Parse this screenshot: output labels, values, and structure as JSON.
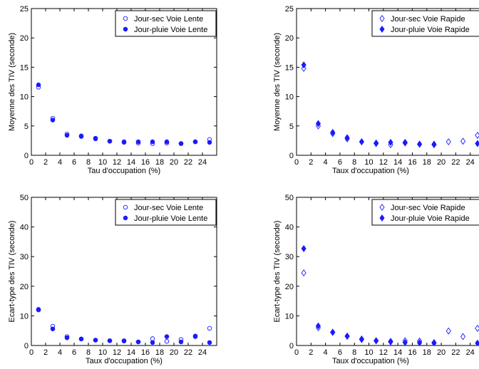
{
  "colors": {
    "marker": "#1a1aff",
    "axis": "#000000"
  },
  "chart_data": [
    {
      "type": "scatter",
      "ylabel": "Moyenne des TIV (seconde)",
      "xlabel": "Tau d'occupation (%)",
      "xlim": [
        0,
        26
      ],
      "ylim": [
        0,
        25
      ],
      "xticks": [
        0,
        2,
        4,
        6,
        8,
        10,
        12,
        14,
        16,
        18,
        20,
        22,
        24
      ],
      "yticks": [
        0,
        5,
        10,
        15,
        20,
        25
      ],
      "grid": false,
      "legend_position": "top-right",
      "series": [
        {
          "name": "Jour-sec Voie Lente",
          "marker": "circle-open",
          "x": [
            1,
            3,
            5,
            7,
            9,
            11,
            13,
            15,
            17,
            19,
            21,
            23,
            25
          ],
          "y": [
            11.6,
            6.3,
            3.6,
            3.2,
            2.8,
            2.4,
            2.2,
            2.1,
            2.0,
            2.1,
            2.0,
            2.3,
            2.7
          ]
        },
        {
          "name": "Jour-pluie Voie Lente",
          "marker": "circle-filled",
          "x": [
            1,
            3,
            5,
            7,
            9,
            11,
            13,
            15,
            17,
            19,
            21,
            23,
            25
          ],
          "y": [
            12.0,
            6.0,
            3.4,
            3.3,
            2.9,
            2.4,
            2.3,
            2.3,
            2.3,
            2.3,
            2.0,
            2.3,
            2.2
          ]
        }
      ]
    },
    {
      "type": "scatter",
      "ylabel": "Moyenne des TIV (seconde)",
      "xlabel": "Taux d'occupation (%)",
      "xlim": [
        0,
        26
      ],
      "ylim": [
        0,
        25
      ],
      "xticks": [
        0,
        2,
        4,
        6,
        8,
        10,
        12,
        14,
        16,
        18,
        20,
        22,
        24
      ],
      "yticks": [
        0,
        5,
        10,
        15,
        20,
        25
      ],
      "grid": false,
      "legend_position": "top-right",
      "series": [
        {
          "name": "Jour-sec Voie Rapide",
          "marker": "diamond-open",
          "x": [
            1,
            3,
            5,
            7,
            9,
            11,
            13,
            15,
            17,
            19,
            21,
            23,
            25
          ],
          "y": [
            14.8,
            5.0,
            3.7,
            2.8,
            2.3,
            2.0,
            1.8,
            2.1,
            1.9,
            1.9,
            2.3,
            2.4,
            3.4
          ]
        },
        {
          "name": "Jour-pluie Voie Rapide",
          "marker": "diamond-filled",
          "x": [
            1,
            3,
            5,
            7,
            9,
            11,
            13,
            15,
            17,
            19,
            25
          ],
          "y": [
            15.4,
            5.4,
            3.9,
            3.0,
            2.3,
            2.1,
            2.2,
            2.2,
            1.9,
            1.8,
            2.0
          ]
        }
      ]
    },
    {
      "type": "scatter",
      "ylabel": "Ecart-type des TIV (seconde)",
      "xlabel": "Taux d'occupation (%)",
      "xlim": [
        0,
        26
      ],
      "ylim": [
        0,
        50
      ],
      "xticks": [
        0,
        2,
        4,
        6,
        8,
        10,
        12,
        14,
        16,
        18,
        20,
        22,
        24
      ],
      "yticks": [
        0,
        10,
        20,
        30,
        40,
        50
      ],
      "grid": false,
      "legend_position": "top-right",
      "series": [
        {
          "name": "Jour-sec Voie Lente",
          "marker": "circle-open",
          "x": [
            1,
            3,
            5,
            7,
            9,
            11,
            13,
            15,
            17,
            19,
            21,
            23,
            25
          ],
          "y": [
            12.0,
            6.5,
            3.0,
            2.2,
            1.8,
            1.6,
            1.5,
            1.2,
            2.3,
            1.4,
            2.0,
            3.0,
            5.8
          ]
        },
        {
          "name": "Jour-pluie Voie Lente",
          "marker": "circle-filled",
          "x": [
            1,
            3,
            5,
            7,
            9,
            11,
            13,
            15,
            17,
            19,
            21,
            23,
            25
          ],
          "y": [
            12.2,
            5.6,
            2.6,
            2.2,
            1.8,
            1.6,
            1.6,
            1.2,
            1.0,
            3.0,
            1.2,
            3.2,
            1.0
          ]
        }
      ]
    },
    {
      "type": "scatter",
      "ylabel": "Ecart-type des TIV (seconde)",
      "xlabel": "Taux d'occupation (%)",
      "xlim": [
        0,
        26
      ],
      "ylim": [
        0,
        50
      ],
      "xticks": [
        0,
        2,
        4,
        6,
        8,
        10,
        12,
        14,
        16,
        18,
        20,
        22,
        24
      ],
      "yticks": [
        0,
        10,
        20,
        30,
        40,
        50
      ],
      "grid": false,
      "legend_position": "top-right",
      "series": [
        {
          "name": "Jour-sec Voie Rapide",
          "marker": "diamond-open",
          "x": [
            1,
            3,
            5,
            7,
            9,
            11,
            13,
            15,
            17,
            19,
            21,
            23,
            25
          ],
          "y": [
            24.5,
            6.0,
            4.4,
            3.2,
            2.0,
            1.6,
            1.2,
            1.6,
            1.5,
            1.0,
            4.9,
            3.0,
            5.8
          ]
        },
        {
          "name": "Jour-pluie Voie Rapide",
          "marker": "diamond-filled",
          "x": [
            1,
            3,
            5,
            7,
            9,
            11,
            13,
            15,
            17,
            19,
            25
          ],
          "y": [
            32.7,
            6.6,
            4.5,
            3.1,
            2.2,
            1.6,
            1.4,
            1.0,
            0.9,
            0.8,
            0.8
          ]
        }
      ]
    }
  ]
}
